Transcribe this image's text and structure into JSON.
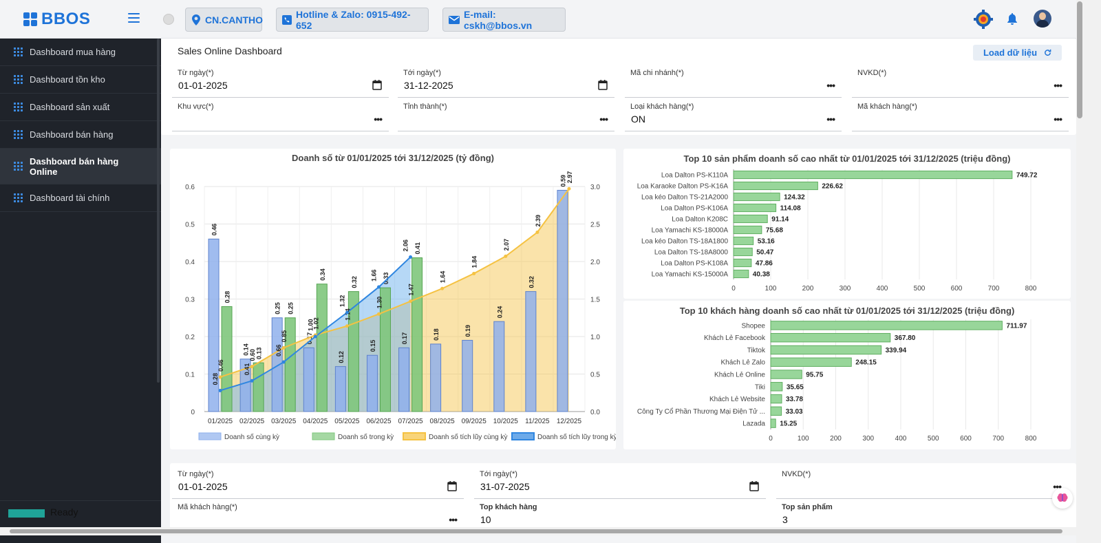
{
  "header": {
    "logo": "BBOS",
    "branch": "CN.CANTHO",
    "hotline": "Hotline & Zalo: 0915-492-652",
    "email": "E-mail: cskh@bbos.vn"
  },
  "sidebar": {
    "items": [
      {
        "label": "Dashboard mua hàng"
      },
      {
        "label": "Dashboard tồn kho"
      },
      {
        "label": "Dashboard sản xuất"
      },
      {
        "label": "Dashboard bán hàng"
      },
      {
        "label": "Dashboard bán hàng Online"
      },
      {
        "label": "Dashboard tài chính"
      }
    ],
    "status": "Ready"
  },
  "page": {
    "title": "Sales Online Dashboard",
    "load_button": "Load dữ liệu",
    "filters": {
      "from_label": "Từ ngày(*)",
      "from_value": "01-01-2025",
      "to_label": "Tới ngày(*)",
      "to_value": "31-12-2025",
      "branch_label": "Mã chi nhánh(*)",
      "nvkd_label": "NVKD(*)",
      "area_label": "Khu vực(*)",
      "province_label": "Tỉnh thành(*)",
      "custtype_label": "Loại khách hàng(*)",
      "custtype_value": "ON",
      "custcode_label": "Mã khách hàng(*)"
    },
    "filters2": {
      "from_label": "Từ ngày(*)",
      "from_value": "01-01-2025",
      "to_label": "Tới ngày(*)",
      "to_value": "31-07-2025",
      "nvkd_label": "NVKD(*)",
      "custcode_label": "Mã khách hàng(*)",
      "topcust_label": "Top khách hàng",
      "topcust_value": "10",
      "topprod_label": "Top sản phẩm",
      "topprod_value": "3"
    }
  },
  "chart_data": [
    {
      "type": "bar",
      "title": "Doanh số từ 01/01/2025 tới 31/12/2025 (tỷ đồng)",
      "categories": [
        "01/2025",
        "02/2025",
        "03/2025",
        "04/2025",
        "05/2025",
        "06/2025",
        "07/2025",
        "08/2025",
        "09/2025",
        "10/2025",
        "11/2025",
        "12/2025"
      ],
      "ylim": [
        0,
        0.6
      ],
      "y_ticks": [
        0,
        0.1,
        0.2,
        0.3,
        0.4,
        0.5,
        0.6
      ],
      "y2lim": [
        0,
        3.0
      ],
      "y2_ticks": [
        0,
        0.5,
        1.0,
        1.5,
        2.0,
        2.5,
        3.0
      ],
      "series": [
        {
          "name": "Doanh số cùng kỳ",
          "axis": "left",
          "color": "#8fb0ec",
          "values": [
            0.46,
            0.14,
            0.25,
            0.17,
            0.12,
            0.15,
            0.17,
            0.18,
            0.19,
            0.24,
            0.32,
            0.59
          ]
        },
        {
          "name": "Doanh số trong kỳ",
          "axis": "left",
          "color": "#7fc77c",
          "values": [
            0.28,
            0.13,
            0.25,
            0.34,
            0.32,
            0.33,
            0.41,
            null,
            null,
            null,
            null,
            null
          ]
        },
        {
          "name": "Doanh số tích lũy cùng kỳ",
          "axis": "right",
          "color": "#f5c242",
          "values": [
            0.46,
            0.6,
            0.85,
            1.02,
            1.14,
            1.3,
            1.47,
            1.64,
            1.84,
            2.07,
            2.39,
            2.97
          ]
        },
        {
          "name": "Doanh số tích lũy trong kỳ",
          "axis": "right",
          "color": "#2f86e0",
          "values": [
            0.28,
            0.41,
            0.66,
            1.0,
            1.32,
            1.66,
            2.06,
            null,
            null,
            null,
            null,
            null
          ]
        }
      ]
    },
    {
      "type": "bar",
      "orientation": "horizontal",
      "title": "Top 10 sản phẩm doanh số cao nhất từ 01/01/2025 tới 31/12/2025 (triệu đồng)",
      "categories": [
        "Loa Dalton PS-K110A",
        "Loa Karaoke Dalton PS-K16A",
        "Loa kéo Dalton TS-21A2000",
        "Loa Dalton PS-K106A",
        "Loa Dalton K208C",
        "Loa Yamachi KS-18000A",
        "Loa kéo Dalton TS-18A1800",
        "Loa Dalton TS-18A8000",
        "Loa Dalton PS-K108A",
        "Loa Yamachi KS-15000A"
      ],
      "values": [
        749.72,
        226.62,
        124.32,
        114.08,
        91.14,
        75.68,
        53.16,
        50.47,
        47.86,
        40.38
      ],
      "labels": [
        "749.72",
        "226.62",
        "124.32",
        "114.08",
        "91.14",
        "75.68",
        "53.16",
        "50.47",
        "47.86",
        "40.38"
      ],
      "xlim": [
        0,
        800
      ],
      "x_ticks": [
        0,
        100,
        200,
        300,
        400,
        500,
        600,
        700,
        800
      ]
    },
    {
      "type": "bar",
      "orientation": "horizontal",
      "title": "Top 10 khách hàng doanh số cao nhất từ 01/01/2025 tới 31/12/2025 (triệu đồng)",
      "categories": [
        "Shopee",
        "Khách Lẻ Facebook",
        "Tiktok",
        "Khách Lẻ Zalo",
        "Khách Lẻ Online",
        "Tiki",
        "Khách Lẻ Website",
        "Công Ty Cổ Phần Thương Mại Điện Tử ...",
        "Lazada"
      ],
      "values": [
        711.97,
        367.8,
        339.94,
        248.15,
        95.75,
        35.65,
        33.78,
        33.03,
        15.25
      ],
      "labels": [
        "711.97",
        "367.80",
        "339.94",
        "248.15",
        "95.75",
        "35.65",
        "33.78",
        "33.03",
        "15.25"
      ],
      "xlim": [
        0,
        800
      ],
      "x_ticks": [
        0,
        100,
        200,
        300,
        400,
        500,
        600,
        700,
        800
      ]
    }
  ]
}
